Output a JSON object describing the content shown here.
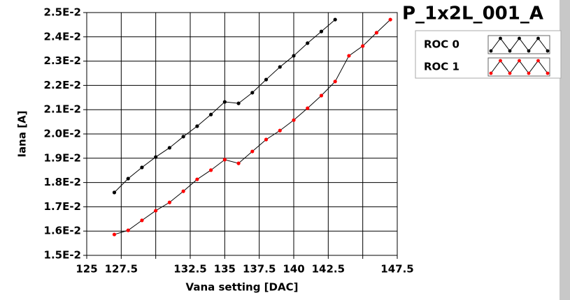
{
  "chart_data": {
    "type": "line",
    "title": "P_1x2L_001_A",
    "xlabel": "Vana setting [DAC]",
    "ylabel": "Iana [A]",
    "xlim": [
      125,
      147.5
    ],
    "xticks": [
      125,
      127.5,
      {
        "value": 130,
        "label": null
      },
      132.5,
      135,
      137.5,
      140,
      142.5,
      {
        "value": 145,
        "label": null
      },
      147.5
    ],
    "ylim": [
      0.015,
      0.025
    ],
    "yticks": [
      {
        "value": 0.015,
        "label": "1.5E-2"
      },
      {
        "value": 0.016,
        "label": "1.6E-2"
      },
      {
        "value": 0.017,
        "label": "1.7E-2"
      },
      {
        "value": 0.018,
        "label": "1.8E-2"
      },
      {
        "value": 0.019,
        "label": "1.9E-2"
      },
      {
        "value": 0.02,
        "label": "2.0E-2"
      },
      {
        "value": 0.021,
        "label": "2.1E-2"
      },
      {
        "value": 0.022,
        "label": "2.2E-2"
      },
      {
        "value": 0.023,
        "label": "2.3E-2"
      },
      {
        "value": 0.024,
        "label": "2.4E-2"
      },
      {
        "value": 0.025,
        "label": "2.5E-2"
      }
    ],
    "grid": true,
    "series": [
      {
        "name": "ROC 0",
        "color": "#000000",
        "x": [
          127,
          128,
          129,
          130,
          131,
          132,
          133,
          134,
          135,
          136,
          137,
          138,
          139,
          140,
          141,
          142,
          143
        ],
        "values": [
          0.01759,
          0.01816,
          0.01862,
          0.01905,
          0.01943,
          0.01989,
          0.02032,
          0.0208,
          0.02132,
          0.02126,
          0.0217,
          0.02224,
          0.02276,
          0.02322,
          0.02374,
          0.02422,
          0.02471
        ]
      },
      {
        "name": "ROC 1",
        "color": "#ff0000",
        "x": [
          127,
          128,
          129,
          130,
          131,
          132,
          133,
          134,
          135,
          136,
          137,
          138,
          139,
          140,
          141,
          142,
          143,
          144,
          145,
          146,
          147
        ],
        "values": [
          0.01586,
          0.01603,
          0.01644,
          0.01684,
          0.01718,
          0.01764,
          0.01813,
          0.01851,
          0.01894,
          0.01879,
          0.01928,
          0.01977,
          0.02014,
          0.02057,
          0.02106,
          0.02158,
          0.02216,
          0.02322,
          0.02362,
          0.02417,
          0.02471
        ]
      }
    ]
  }
}
